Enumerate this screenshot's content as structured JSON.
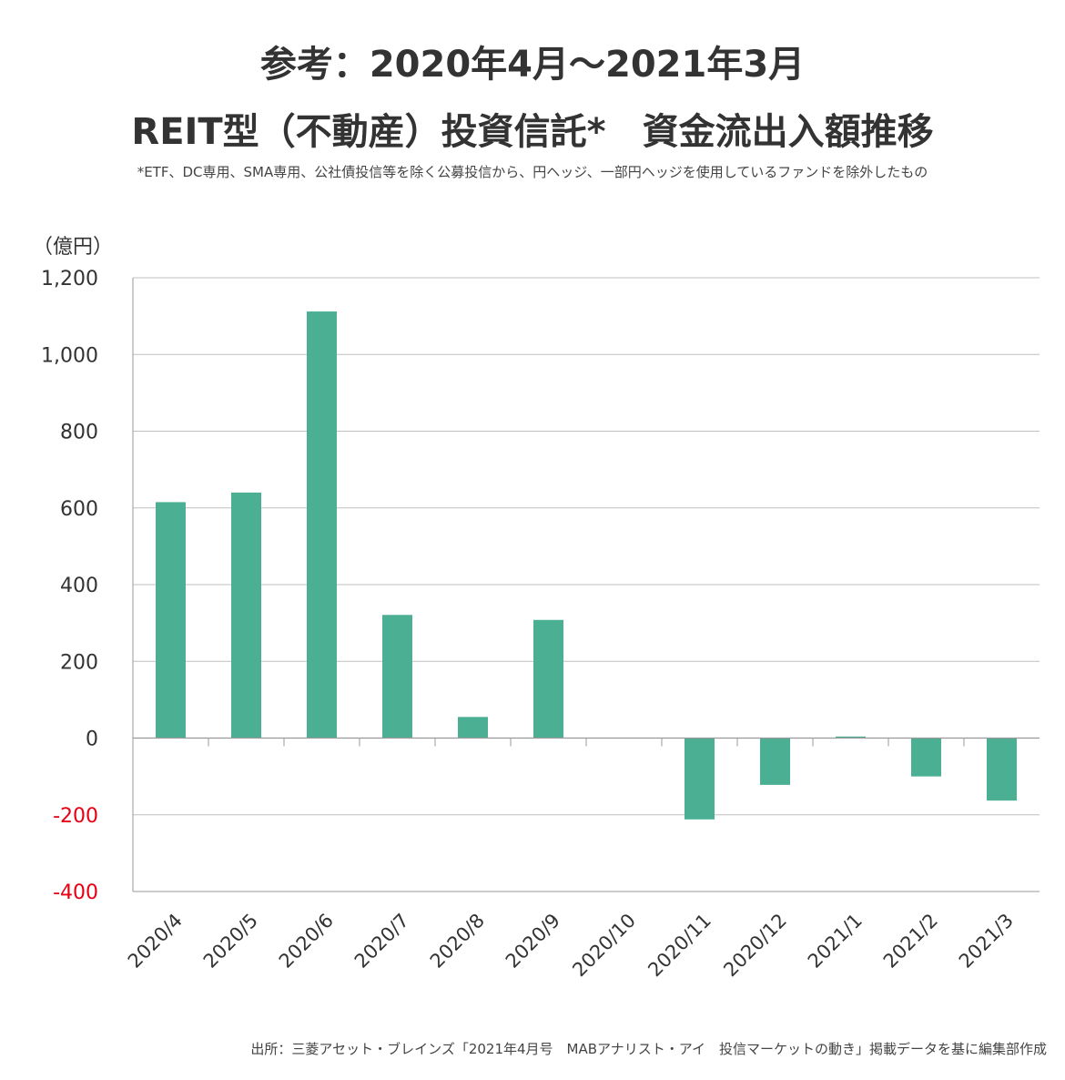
{
  "page": {
    "title_line1": "参考：2020年4月～2021年3月",
    "title_line2": "REIT型（不動産）投資信託*　資金流出入額推移",
    "note": "*ETF、DC専用、SMA専用、公社債投信等を除く公募投信から、円ヘッジ、一部円ヘッジを使用しているファンドを除外したもの",
    "source": "出所：三菱アセット・ブレインズ「2021年4月号　MABアナリスト・アイ　投信マーケットの動き」掲載データを基に編集部作成"
  },
  "colors": {
    "bar": "#4aaf93",
    "grid": "#bfbfbf",
    "axis": "#999999",
    "negative_tick": "#e60012",
    "text": "#333333"
  },
  "chart_data": {
    "type": "bar",
    "ylabel": "（億円）",
    "ylim": [
      -400,
      1200
    ],
    "yticks": [
      1200,
      1000,
      800,
      600,
      400,
      200,
      0,
      -200,
      -400
    ],
    "ytick_labels": [
      "1,200",
      "1,000",
      "800",
      "600",
      "400",
      "200",
      "0",
      "-200",
      "-400"
    ],
    "grid": true,
    "categories": [
      "2020/4",
      "2020/5",
      "2020/6",
      "2020/7",
      "2020/8",
      "2020/9",
      "2020/10",
      "2020/11",
      "2020/12",
      "2021/1",
      "2021/2",
      "2021/3"
    ],
    "values": [
      615,
      640,
      1112,
      321,
      55,
      308,
      0,
      -212,
      -122,
      4,
      -100,
      -163
    ]
  }
}
